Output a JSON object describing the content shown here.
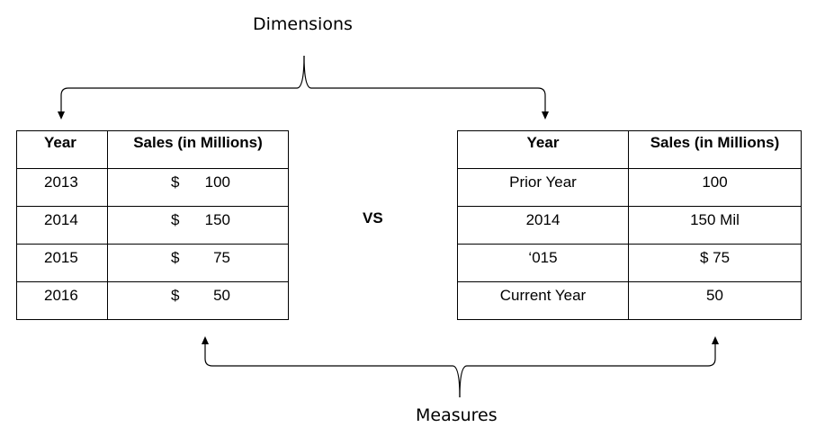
{
  "labels": {
    "dimensions": "Dimensions",
    "measures": "Measures",
    "vs": "VS"
  },
  "left_table": {
    "headers": [
      "Year",
      "Sales (in Millions)"
    ],
    "rows": [
      {
        "year": "2013",
        "currency": "$",
        "amount": "100"
      },
      {
        "year": "2014",
        "currency": "$",
        "amount": "150"
      },
      {
        "year": "2015",
        "currency": "$",
        "amount": "75"
      },
      {
        "year": "2016",
        "currency": "$",
        "amount": "50"
      }
    ]
  },
  "right_table": {
    "headers": [
      "Year",
      "Sales (in Millions)"
    ],
    "rows": [
      {
        "year": "Prior Year",
        "sales": "100"
      },
      {
        "year": "2014",
        "sales": "150 Mil"
      },
      {
        "year": "‘015",
        "sales": "$ 75"
      },
      {
        "year": "Current Year",
        "sales": "50"
      }
    ]
  }
}
